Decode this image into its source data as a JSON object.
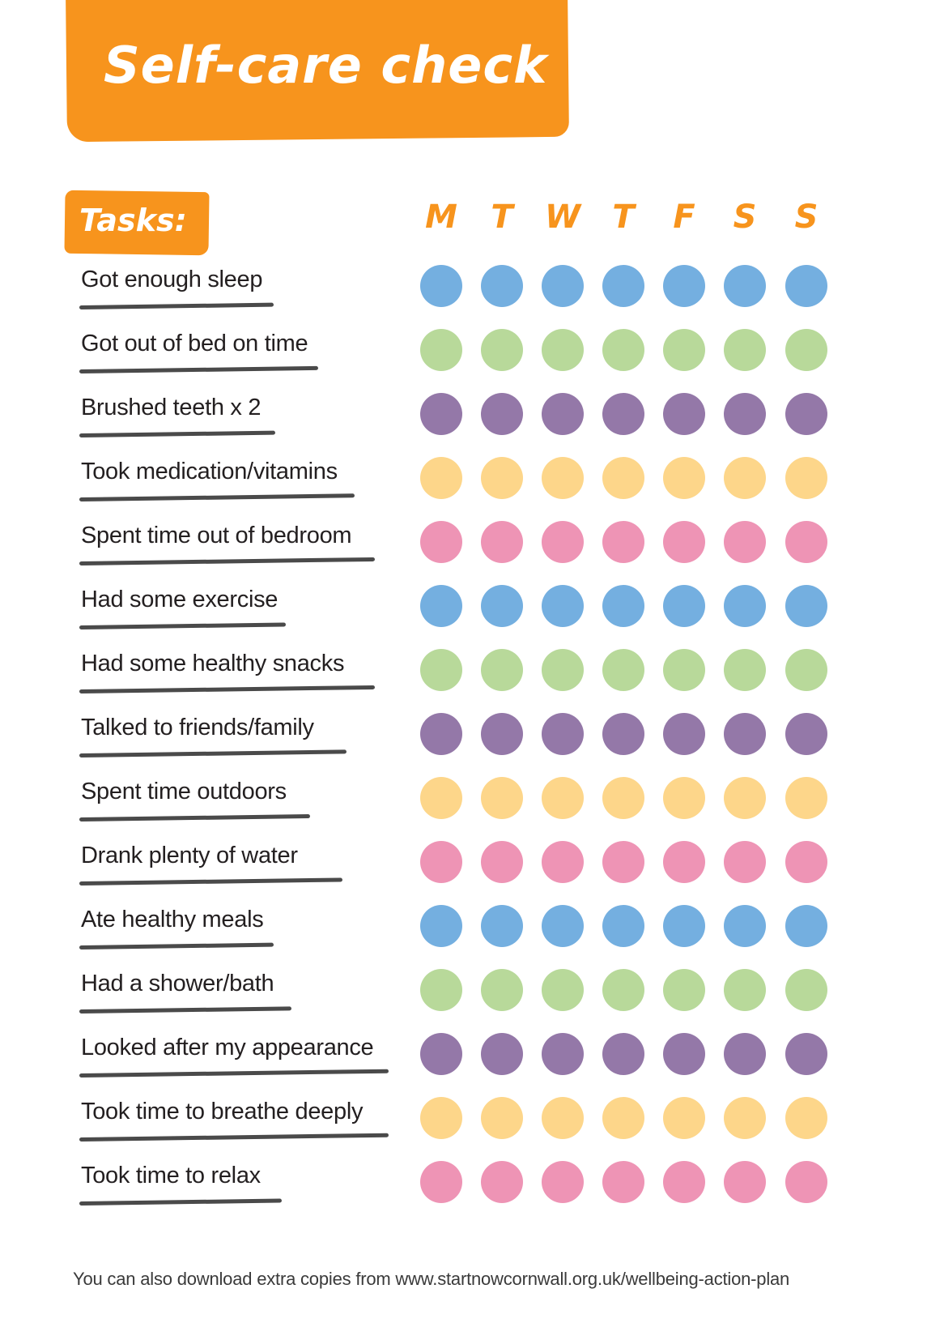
{
  "header": {
    "title": "Self-care check",
    "accent_color": "#f7941d"
  },
  "tasks_label": "Tasks:",
  "days": [
    "M",
    "T",
    "W",
    "T",
    "F",
    "S",
    "S"
  ],
  "colors": {
    "blue": "#74afe0",
    "green": "#b8d99a",
    "purple": "#9478a8",
    "yellow": "#fdd68a",
    "pink": "#ee94b5"
  },
  "tasks": [
    {
      "label": "Got enough sleep",
      "color": "blue",
      "underline_width": 240
    },
    {
      "label": "Got out of bed on time",
      "color": "green",
      "underline_width": 295
    },
    {
      "label": "Brushed teeth x 2",
      "color": "purple",
      "underline_width": 242
    },
    {
      "label": "Took medication/vitamins",
      "color": "yellow",
      "underline_width": 340
    },
    {
      "label": "Spent time out of bedroom",
      "color": "pink",
      "underline_width": 365
    },
    {
      "label": "Had some exercise",
      "color": "blue",
      "underline_width": 255
    },
    {
      "label": "Had some healthy snacks",
      "color": "green",
      "underline_width": 365
    },
    {
      "label": "Talked to friends/family",
      "color": "purple",
      "underline_width": 330
    },
    {
      "label": "Spent time outdoors",
      "color": "yellow",
      "underline_width": 285
    },
    {
      "label": "Drank plenty of water",
      "color": "pink",
      "underline_width": 325
    },
    {
      "label": "Ate healthy meals",
      "color": "blue",
      "underline_width": 240
    },
    {
      "label": "Had a shower/bath",
      "color": "green",
      "underline_width": 262
    },
    {
      "label": "Looked after my appearance",
      "color": "purple",
      "underline_width": 382
    },
    {
      "label": "Took time to breathe deeply",
      "color": "yellow",
      "underline_width": 382
    },
    {
      "label": "Took time to relax",
      "color": "pink",
      "underline_width": 250
    }
  ],
  "footer": {
    "text": "You can also download extra copies from www.startnowcornwall.org.uk/wellbeing-action-plan"
  }
}
